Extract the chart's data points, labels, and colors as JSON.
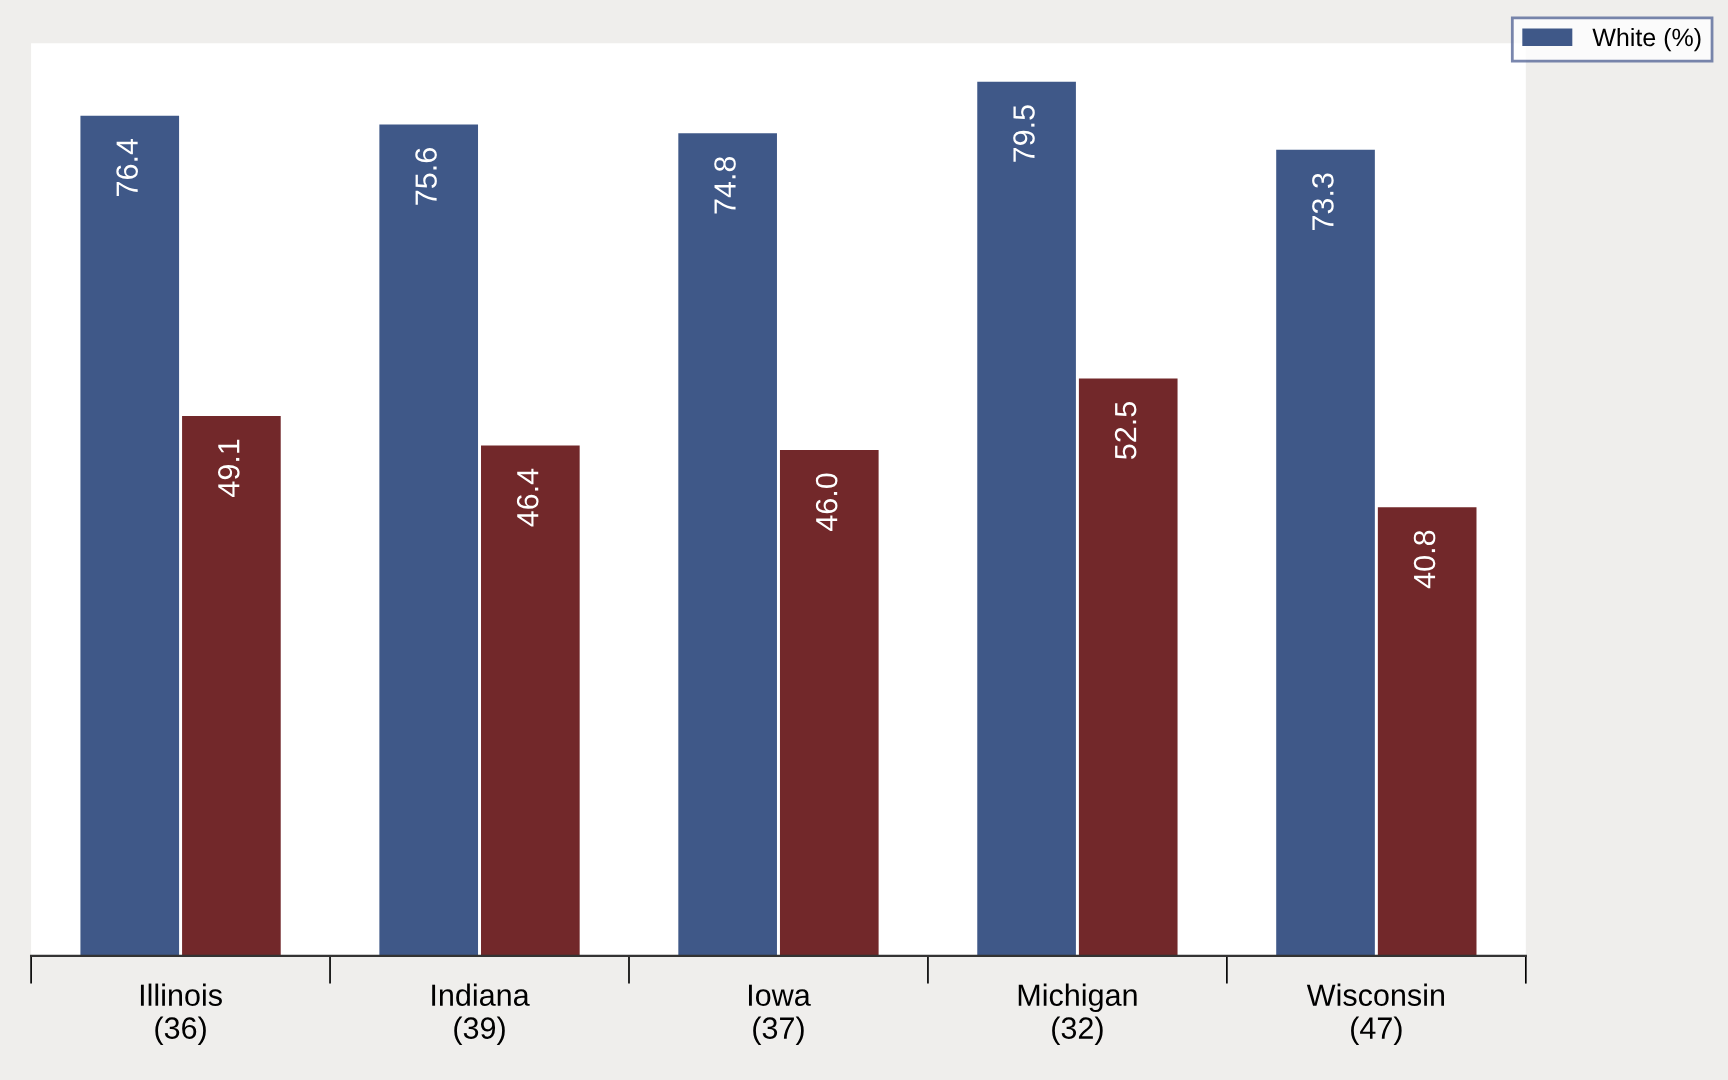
{
  "chart_data": {
    "type": "bar",
    "categories": [
      "Illinois\n(36)",
      "Indiana\n(39)",
      "Iowa\n(37)",
      "Michigan\n(32)",
      "Wisconsin\n(47)"
    ],
    "series": [
      {
        "name": "White (%)",
        "color": "#3f5888",
        "values": [
          76.4,
          75.6,
          74.8,
          79.5,
          73.3
        ],
        "value_labels": [
          "76.4",
          "75.6",
          "74.8",
          "79.5",
          "73.3"
        ]
      },
      {
        "color": "#72282a",
        "values": [
          49.1,
          46.4,
          46.0,
          52.5,
          40.8
        ],
        "value_labels": [
          "49.1",
          "46.4",
          "46.0",
          "52.5",
          "40.8"
        ]
      }
    ],
    "ylim": [
      0,
      83
    ],
    "grid": false,
    "legend": "top right"
  }
}
